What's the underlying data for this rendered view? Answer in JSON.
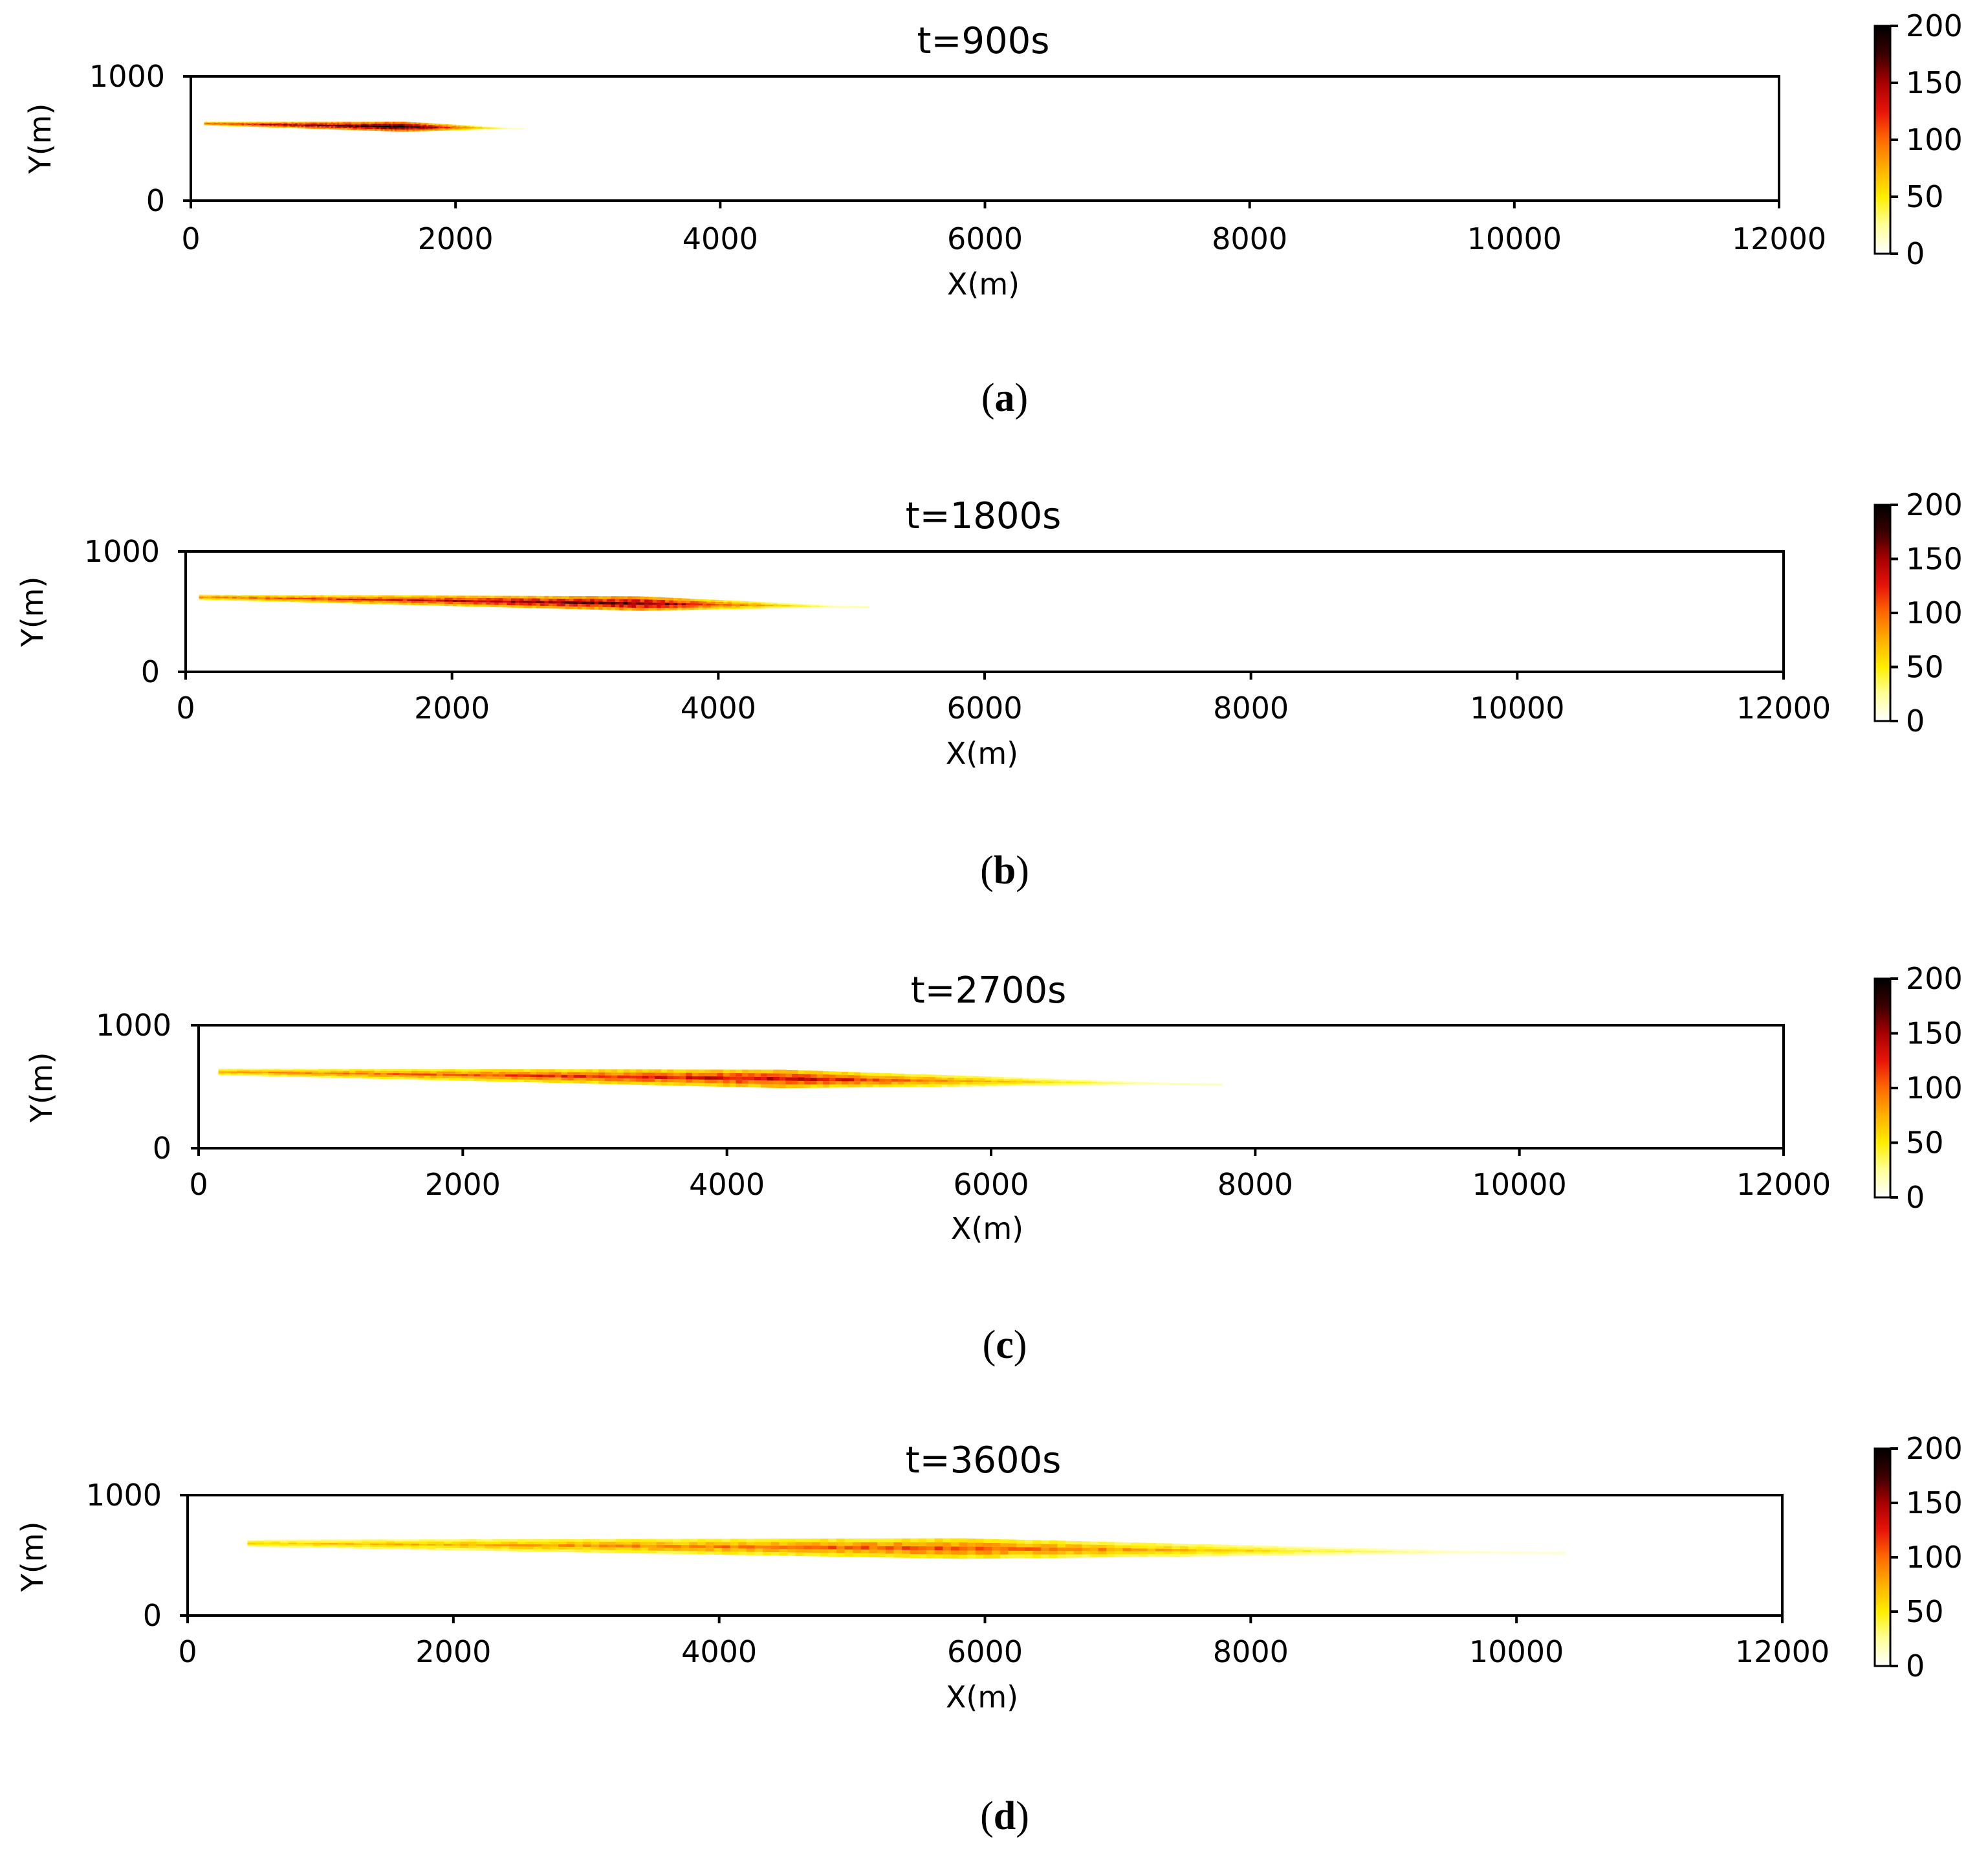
{
  "figure": {
    "panels": [
      {
        "caption_letter": "a",
        "caption_open": "(",
        "caption_close": ")"
      },
      {
        "caption_letter": "b",
        "caption_open": "(",
        "caption_close": ")"
      },
      {
        "caption_letter": "c",
        "caption_open": "(",
        "caption_close": ")"
      },
      {
        "caption_letter": "d",
        "caption_open": "(",
        "caption_close": ")"
      }
    ]
  },
  "colors": {
    "axis": "#000000",
    "colormap": [
      "#ffffff",
      "#ffff99",
      "#ffee00",
      "#ffb000",
      "#ff6a00",
      "#e8140a",
      "#a80000",
      "#3a0000",
      "#000000"
    ]
  },
  "chart_data": [
    {
      "type": "heatmap",
      "title": "t=900s",
      "xlabel": "X(m)",
      "ylabel": "Y(m)",
      "xlim": [
        0,
        12000
      ],
      "ylim": [
        0,
        1000
      ],
      "xticks": [
        0,
        2000,
        4000,
        6000,
        8000,
        10000,
        12000
      ],
      "yticks": [
        0,
        1000
      ],
      "colorbar": {
        "range": [
          0,
          200
        ],
        "ticks": [
          0,
          50,
          100,
          150,
          200
        ]
      },
      "plume": {
        "x_start": 100,
        "x_end": 2500,
        "y_center_start": 620,
        "y_center_end": 580,
        "peak_x": 1600,
        "max_half_width": 40,
        "peak_value": 200
      }
    },
    {
      "type": "heatmap",
      "title": "t=1800s",
      "xlabel": "X(m)",
      "ylabel": "Y(m)",
      "xlim": [
        0,
        12000
      ],
      "ylim": [
        0,
        1000
      ],
      "xticks": [
        0,
        2000,
        4000,
        6000,
        8000,
        10000,
        12000
      ],
      "yticks": [
        0,
        1000
      ],
      "colorbar": {
        "range": [
          0,
          200
        ],
        "ticks": [
          0,
          50,
          100,
          150,
          200
        ]
      },
      "plume": {
        "x_start": 100,
        "x_end": 5100,
        "y_center_start": 620,
        "y_center_end": 540,
        "peak_x": 3400,
        "max_half_width": 60,
        "peak_value": 170
      }
    },
    {
      "type": "heatmap",
      "title": "t=2700s",
      "xlabel": "X(m)",
      "ylabel": "Y(m)",
      "xlim": [
        0,
        12000
      ],
      "ylim": [
        0,
        1000
      ],
      "xticks": [
        0,
        2000,
        4000,
        6000,
        8000,
        10000,
        12000
      ],
      "yticks": [
        0,
        1000
      ],
      "colorbar": {
        "range": [
          0,
          200
        ],
        "ticks": [
          0,
          50,
          100,
          150,
          200
        ]
      },
      "plume": {
        "x_start": 150,
        "x_end": 7700,
        "y_center_start": 620,
        "y_center_end": 520,
        "peak_x": 4400,
        "max_half_width": 75,
        "peak_value": 140
      }
    },
    {
      "type": "heatmap",
      "title": "t=3600s",
      "xlabel": "X(m)",
      "ylabel": "Y(m)",
      "xlim": [
        0,
        12000
      ],
      "ylim": [
        0,
        1000
      ],
      "xticks": [
        0,
        2000,
        4000,
        6000,
        8000,
        10000,
        12000
      ],
      "yticks": [
        0,
        1000
      ],
      "colorbar": {
        "range": [
          0,
          200
        ],
        "ticks": [
          0,
          50,
          100,
          150,
          200
        ]
      },
      "plume": {
        "x_start": 450,
        "x_end": 10300,
        "y_center_start": 600,
        "y_center_end": 520,
        "peak_x": 5800,
        "max_half_width": 85,
        "peak_value": 110
      }
    }
  ]
}
